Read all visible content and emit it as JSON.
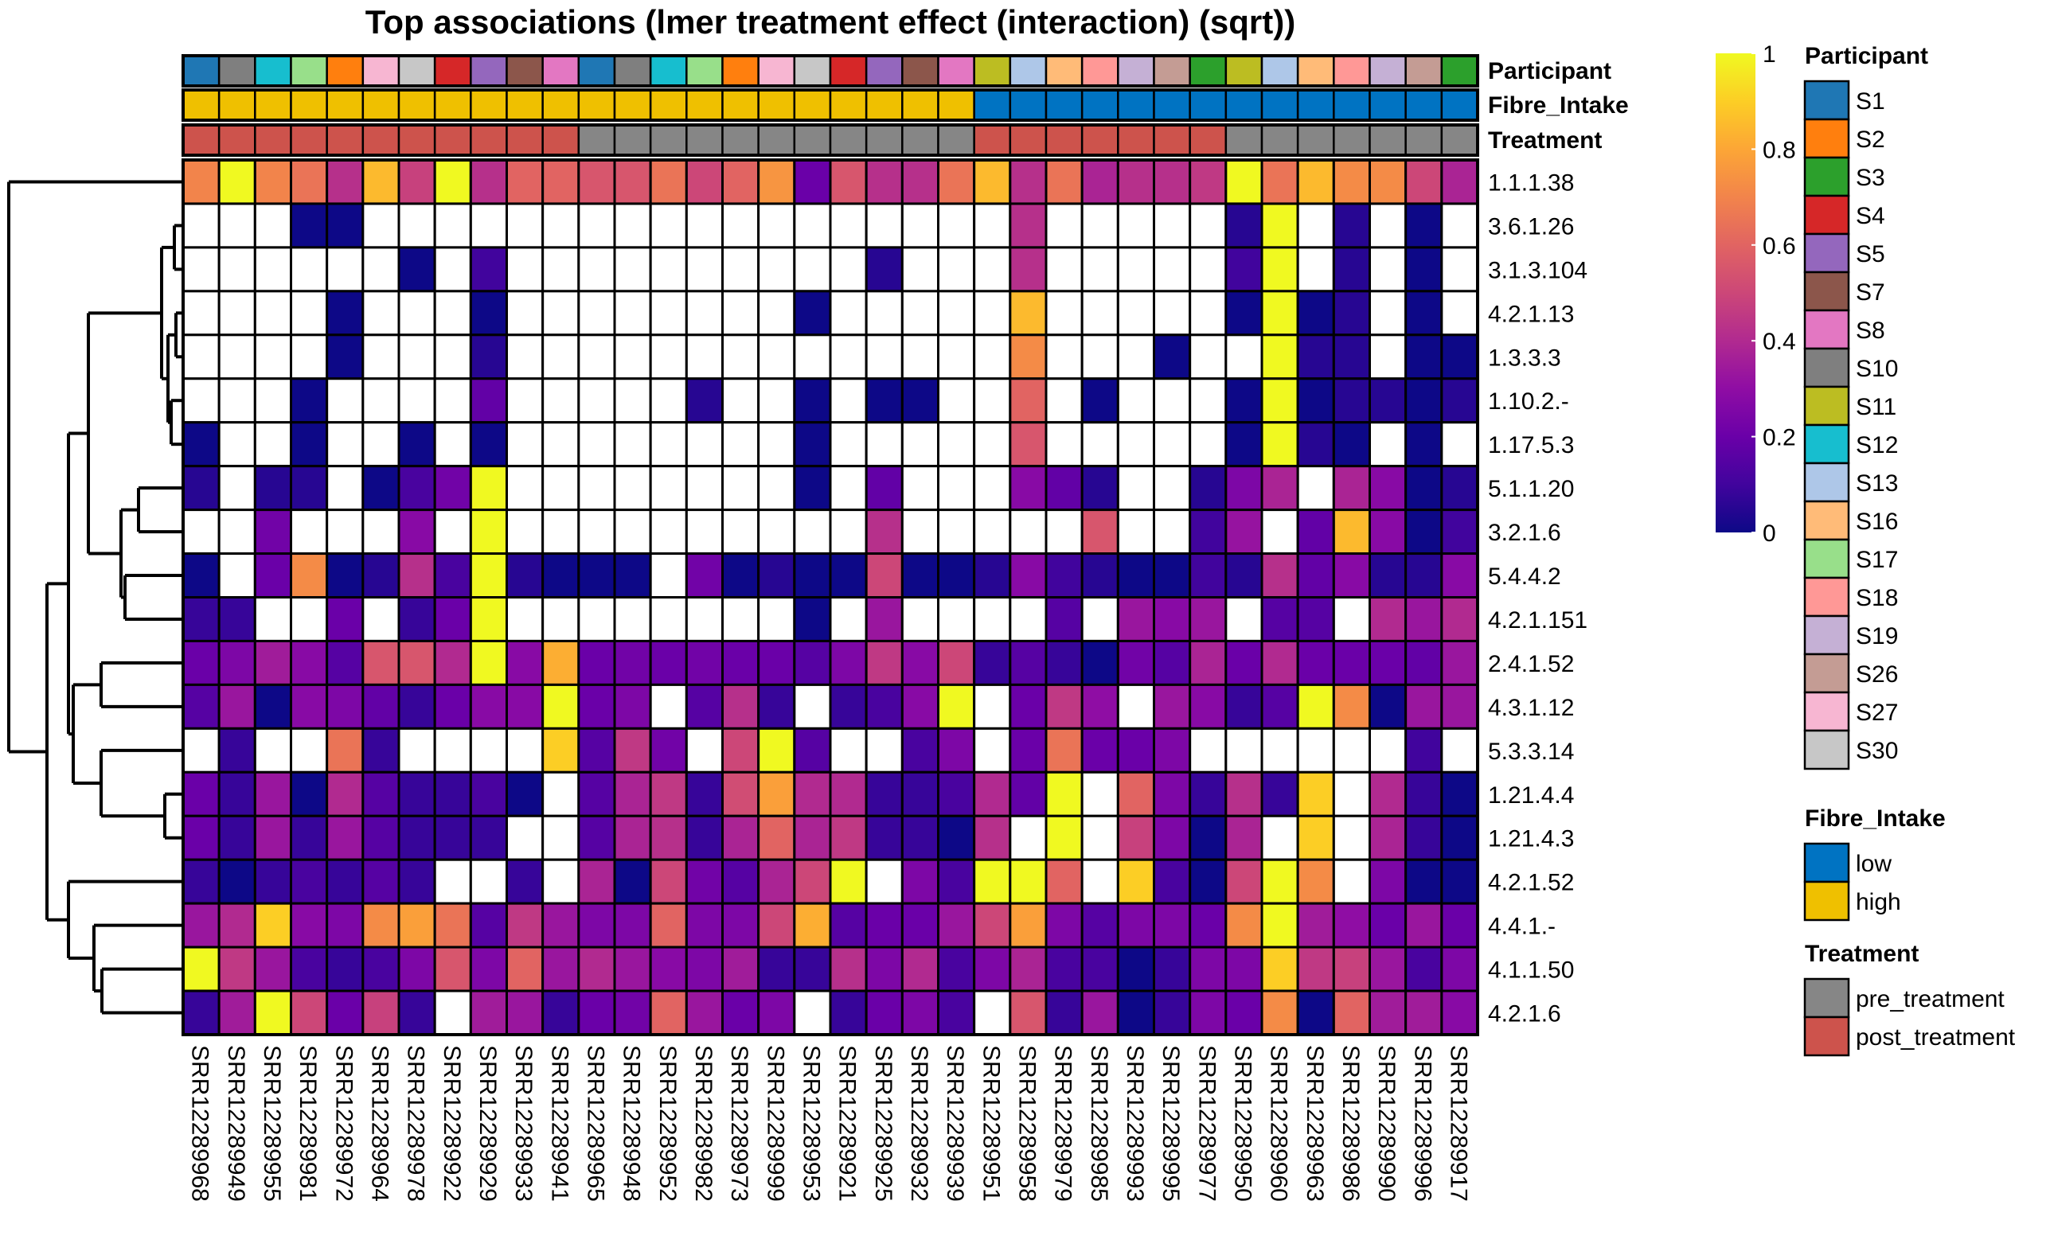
{
  "chart_data": {
    "type": "heatmap",
    "title": "Top associations (lmer treatment effect (interaction) (sqrt))",
    "rows": [
      "1.1.1.38",
      "3.6.1.26",
      "3.1.3.104",
      "4.2.1.13",
      "1.3.3.3",
      "1.10.2.-",
      "1.17.5.3",
      "5.1.1.20",
      "3.2.1.6",
      "5.4.4.2",
      "4.2.1.151",
      "2.4.1.52",
      "4.3.1.12",
      "5.3.3.14",
      "1.21.4.4",
      "1.21.4.3",
      "4.2.1.52",
      "4.4.1.-",
      "4.1.1.50",
      "4.2.1.6"
    ],
    "columns": [
      "SRR12289968",
      "SRR12289949",
      "SRR12289955",
      "SRR12289981",
      "SRR12289972",
      "SRR12289964",
      "SRR12289978",
      "SRR12289922",
      "SRR12289929",
      "SRR12289933",
      "SRR12289941",
      "SRR12289965",
      "SRR12289948",
      "SRR12289952",
      "SRR12289982",
      "SRR12289973",
      "SRR12289999",
      "SRR12289953",
      "SRR12289921",
      "SRR12289925",
      "SRR12289932",
      "SRR12289939",
      "SRR12289951",
      "SRR12289958",
      "SRR12289979",
      "SRR12289985",
      "SRR12289993",
      "SRR12289995",
      "SRR12289977",
      "SRR12289950",
      "SRR12289960",
      "SRR12289963",
      "SRR12289986",
      "SRR12289990",
      "SRR12289996",
      "SRR12289917"
    ],
    "values": [
      [
        0.7,
        1,
        0.7,
        0.65,
        0.42,
        0.85,
        0.48,
        1,
        0.42,
        0.6,
        0.6,
        0.55,
        0.55,
        0.65,
        0.5,
        0.6,
        0.75,
        0.2,
        0.55,
        0.42,
        0.42,
        0.65,
        0.85,
        0.42,
        0.65,
        0.38,
        0.42,
        0.42,
        0.45,
        1,
        0.65,
        0.85,
        0.72,
        0.72,
        0.5,
        0.38
      ],
      [
        null,
        null,
        null,
        0,
        0,
        null,
        null,
        null,
        null,
        null,
        null,
        null,
        null,
        null,
        null,
        null,
        null,
        null,
        null,
        null,
        null,
        null,
        null,
        0.42,
        null,
        null,
        null,
        null,
        null,
        0.05,
        1,
        null,
        0.05,
        null,
        0,
        null
      ],
      [
        null,
        null,
        null,
        null,
        null,
        null,
        0,
        null,
        0.1,
        null,
        null,
        null,
        null,
        null,
        null,
        null,
        null,
        null,
        null,
        0.05,
        null,
        null,
        null,
        0.42,
        null,
        null,
        null,
        null,
        null,
        0.1,
        1,
        null,
        0.05,
        null,
        0,
        null
      ],
      [
        null,
        null,
        null,
        null,
        0,
        null,
        null,
        null,
        0,
        null,
        null,
        null,
        null,
        null,
        null,
        null,
        null,
        0,
        null,
        null,
        null,
        null,
        null,
        0.85,
        null,
        null,
        null,
        null,
        null,
        0,
        1,
        0,
        0.05,
        null,
        0,
        null
      ],
      [
        null,
        null,
        null,
        null,
        0,
        null,
        null,
        null,
        0.05,
        null,
        null,
        null,
        null,
        null,
        null,
        null,
        null,
        null,
        null,
        null,
        null,
        null,
        null,
        0.72,
        null,
        null,
        null,
        0,
        null,
        null,
        1,
        0.05,
        0.05,
        null,
        0,
        0
      ],
      [
        null,
        null,
        null,
        0,
        null,
        null,
        null,
        null,
        0.18,
        null,
        null,
        null,
        null,
        null,
        0.05,
        null,
        null,
        0,
        null,
        0,
        0,
        null,
        null,
        0.6,
        null,
        0,
        null,
        null,
        null,
        0,
        1,
        0,
        0.05,
        0.05,
        0,
        0.05
      ],
      [
        0,
        null,
        null,
        0,
        null,
        null,
        0,
        null,
        0,
        null,
        null,
        null,
        null,
        null,
        null,
        null,
        null,
        0,
        null,
        null,
        null,
        null,
        null,
        0.55,
        null,
        null,
        null,
        null,
        null,
        0,
        1,
        0.05,
        0,
        null,
        0,
        null
      ],
      [
        0.05,
        null,
        0.05,
        0.05,
        null,
        0,
        0.12,
        0.22,
        1,
        null,
        null,
        null,
        null,
        null,
        null,
        null,
        null,
        0,
        null,
        0.18,
        null,
        null,
        null,
        0.28,
        0.18,
        0.05,
        null,
        null,
        0.05,
        0.25,
        0.38,
        null,
        0.38,
        0.28,
        0,
        0.05
      ],
      [
        null,
        null,
        0.22,
        null,
        null,
        null,
        0.28,
        null,
        1,
        null,
        null,
        null,
        null,
        null,
        null,
        null,
        null,
        null,
        null,
        0.42,
        null,
        null,
        null,
        null,
        null,
        0.55,
        null,
        null,
        0.1,
        0.32,
        null,
        0.18,
        0.85,
        0.28,
        0,
        0.1
      ],
      [
        0,
        null,
        0.2,
        0.72,
        0,
        0.05,
        0.42,
        0.12,
        1,
        0.05,
        0,
        0,
        0,
        null,
        0.22,
        0,
        0.05,
        0,
        0,
        0.5,
        0,
        0,
        0.05,
        0.28,
        0.1,
        0.05,
        0,
        0,
        0.1,
        0.05,
        0.42,
        0.18,
        0.28,
        0.05,
        0.05,
        0.28
      ],
      [
        0.08,
        0.08,
        null,
        null,
        0.2,
        null,
        0.08,
        0.2,
        1,
        null,
        null,
        null,
        null,
        null,
        null,
        null,
        null,
        0,
        null,
        0.33,
        null,
        null,
        null,
        null,
        0.15,
        null,
        0.33,
        0.28,
        0.33,
        null,
        0.15,
        0.15,
        null,
        0.4,
        0.33,
        0.4
      ],
      [
        0.2,
        0.25,
        0.35,
        0.28,
        0.15,
        0.55,
        0.55,
        0.4,
        1,
        0.28,
        0.82,
        0.2,
        0.22,
        0.2,
        0.22,
        0.2,
        0.2,
        0.15,
        0.25,
        0.45,
        0.28,
        0.5,
        0.08,
        0.15,
        0.08,
        0,
        0.22,
        0.15,
        0.38,
        0.2,
        0.4,
        0.2,
        0.2,
        0.2,
        0.18,
        0.33
      ],
      [
        0.15,
        0.33,
        0,
        0.28,
        0.25,
        0.18,
        0.08,
        0.2,
        0.28,
        0.28,
        1,
        0.2,
        0.25,
        null,
        0.15,
        0.42,
        0.08,
        null,
        0.08,
        0.12,
        0.28,
        1,
        null,
        0.2,
        0.45,
        0.3,
        null,
        0.33,
        0.28,
        0.08,
        0.15,
        1,
        0.72,
        0,
        0.33,
        0.33
      ],
      [
        null,
        0.08,
        null,
        null,
        0.65,
        0.08,
        null,
        null,
        null,
        null,
        0.9,
        0.15,
        0.45,
        0.22,
        null,
        0.5,
        1,
        0.15,
        null,
        null,
        0.12,
        0.25,
        null,
        0.2,
        0.65,
        0.2,
        0.2,
        0.25,
        null,
        null,
        null,
        null,
        null,
        null,
        0.1,
        null
      ],
      [
        0.2,
        0.08,
        0.33,
        0,
        0.4,
        0.15,
        0.08,
        0.08,
        0.12,
        0,
        null,
        0.15,
        0.38,
        0.45,
        0.08,
        0.52,
        0.78,
        0.4,
        0.4,
        0.08,
        0.08,
        0.12,
        0.4,
        0.18,
        1,
        null,
        0.6,
        0.25,
        0.08,
        0.42,
        0.08,
        0.9,
        null,
        0.4,
        0.08,
        0
      ],
      [
        0.2,
        0.08,
        0.33,
        0.08,
        0.33,
        0.15,
        0.08,
        0.08,
        0.08,
        null,
        null,
        0.15,
        0.38,
        0.42,
        0.08,
        0.38,
        0.6,
        0.38,
        0.45,
        0.08,
        0.08,
        0,
        0.42,
        null,
        1,
        null,
        0.48,
        0.25,
        0,
        0.38,
        null,
        0.9,
        null,
        0.38,
        0.08,
        0
      ],
      [
        0.08,
        0,
        0.08,
        0.12,
        0.08,
        0.15,
        0.08,
        null,
        null,
        0.08,
        null,
        0.38,
        0,
        0.5,
        0.22,
        0.15,
        0.38,
        0.5,
        1,
        null,
        0.25,
        0.12,
        1,
        1,
        0.6,
        null,
        0.9,
        0.12,
        0,
        0.5,
        1,
        0.72,
        null,
        0.25,
        0,
        0
      ],
      [
        0.33,
        0.4,
        0.9,
        0.28,
        0.25,
        0.72,
        0.78,
        0.65,
        0.15,
        0.45,
        0.33,
        0.25,
        0.25,
        0.6,
        0.25,
        0.25,
        0.5,
        0.82,
        0.15,
        0.2,
        0.2,
        0.33,
        0.5,
        0.78,
        0.25,
        0.15,
        0.25,
        0.25,
        0.2,
        0.72,
        1,
        0.35,
        0.3,
        0.2,
        0.33,
        0.2
      ],
      [
        1,
        0.45,
        0.33,
        0.12,
        0.08,
        0.12,
        0.25,
        0.55,
        0.25,
        0.6,
        0.33,
        0.4,
        0.33,
        0.28,
        0.25,
        0.35,
        0.08,
        0.08,
        0.42,
        0.25,
        0.4,
        0.12,
        0.25,
        0.38,
        0.12,
        0.12,
        0,
        0.08,
        0.25,
        0.25,
        0.9,
        0.45,
        0.48,
        0.33,
        0.12,
        0.25
      ],
      [
        0.08,
        0.35,
        1,
        0.5,
        0.2,
        0.48,
        0.08,
        null,
        0.35,
        0.33,
        0.08,
        0.2,
        0.22,
        0.6,
        0.33,
        0.2,
        0.25,
        null,
        0.08,
        0.2,
        0.25,
        0.12,
        null,
        0.55,
        0.08,
        0.33,
        0,
        0.08,
        0.25,
        0.2,
        0.72,
        0,
        0.6,
        0.35,
        0.35,
        0.28
      ]
    ],
    "missing_color": "#ffffff",
    "colorscale": "plasma",
    "value_range": [
      0,
      1
    ],
    "colorbar_ticks": [
      "0",
      "0.2",
      "0.4",
      "0.6",
      "0.8",
      "1"
    ],
    "row_dendrogram": true,
    "annotations": {
      "labels": [
        "Participant",
        "Fibre_Intake",
        "Treatment"
      ],
      "participant": [
        "S1",
        "S10",
        "S12",
        "S17",
        "S2",
        "S27",
        "S30",
        "S4",
        "S5",
        "S7",
        "S8",
        "S1",
        "S10",
        "S12",
        "S17",
        "S2",
        "S27",
        "S30",
        "S4",
        "S5",
        "S7",
        "S8",
        "S11",
        "S13",
        "S16",
        "S18",
        "S19",
        "S26",
        "S3",
        "S11",
        "S13",
        "S16",
        "S18",
        "S19",
        "S26",
        "S3"
      ],
      "fibre_intake": [
        "high",
        "high",
        "high",
        "high",
        "high",
        "high",
        "high",
        "high",
        "high",
        "high",
        "high",
        "high",
        "high",
        "high",
        "high",
        "high",
        "high",
        "high",
        "high",
        "high",
        "high",
        "high",
        "low",
        "low",
        "low",
        "low",
        "low",
        "low",
        "low",
        "low",
        "low",
        "low",
        "low",
        "low",
        "low",
        "low"
      ],
      "treatment": [
        "post_treatment",
        "post_treatment",
        "post_treatment",
        "post_treatment",
        "post_treatment",
        "post_treatment",
        "post_treatment",
        "post_treatment",
        "post_treatment",
        "post_treatment",
        "post_treatment",
        "pre_treatment",
        "pre_treatment",
        "pre_treatment",
        "pre_treatment",
        "pre_treatment",
        "pre_treatment",
        "pre_treatment",
        "pre_treatment",
        "pre_treatment",
        "pre_treatment",
        "pre_treatment",
        "post_treatment",
        "post_treatment",
        "post_treatment",
        "post_treatment",
        "post_treatment",
        "post_treatment",
        "post_treatment",
        "pre_treatment",
        "pre_treatment",
        "pre_treatment",
        "pre_treatment",
        "pre_treatment",
        "pre_treatment",
        "pre_treatment"
      ]
    },
    "legends": [
      {
        "title": "Participant",
        "entries": [
          {
            "label": "S1",
            "color": "#1f77b4"
          },
          {
            "label": "S2",
            "color": "#ff7f0e"
          },
          {
            "label": "S3",
            "color": "#2ca02c"
          },
          {
            "label": "S4",
            "color": "#d62728"
          },
          {
            "label": "S5",
            "color": "#9467bd"
          },
          {
            "label": "S7",
            "color": "#8c564b"
          },
          {
            "label": "S8",
            "color": "#e377c2"
          },
          {
            "label": "S10",
            "color": "#7f7f7f"
          },
          {
            "label": "S11",
            "color": "#bcbd22"
          },
          {
            "label": "S12",
            "color": "#17becf"
          },
          {
            "label": "S13",
            "color": "#aec7e8"
          },
          {
            "label": "S16",
            "color": "#ffbb78"
          },
          {
            "label": "S17",
            "color": "#98df8a"
          },
          {
            "label": "S18",
            "color": "#ff9896"
          },
          {
            "label": "S19",
            "color": "#c5b0d5"
          },
          {
            "label": "S26",
            "color": "#c49c94"
          },
          {
            "label": "S27",
            "color": "#f7b6d2"
          },
          {
            "label": "S30",
            "color": "#c7c7c7"
          }
        ]
      },
      {
        "title": "Fibre_Intake",
        "entries": [
          {
            "label": "low",
            "color": "#0073c2"
          },
          {
            "label": "high",
            "color": "#efc000"
          }
        ]
      },
      {
        "title": "Treatment",
        "entries": [
          {
            "label": "pre_treatment",
            "color": "#868686"
          },
          {
            "label": "post_treatment",
            "color": "#cd534c"
          }
        ]
      }
    ]
  }
}
